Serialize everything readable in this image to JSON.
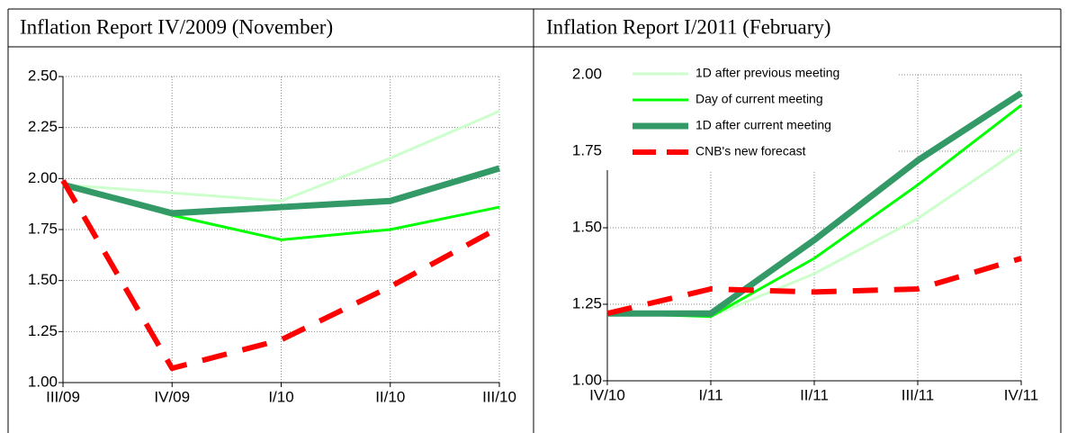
{
  "chart_data": [
    {
      "type": "line",
      "title": "Inflation Report IV/2009 (November)",
      "categories": [
        "III/09",
        "IV/09",
        "I/10",
        "II/10",
        "III/10"
      ],
      "ylim": [
        1.0,
        2.5
      ],
      "yticks": [
        {
          "value": 1.0,
          "label": "1.00"
        },
        1.25,
        {
          "value": 1.5,
          "label": "1.50"
        },
        1.75,
        {
          "value": 2.0,
          "label": "2.00"
        },
        2.25,
        {
          "value": 2.5,
          "label": "2.50"
        }
      ],
      "grid": true,
      "series": [
        {
          "color": "#ccffcc",
          "line_style": "solid",
          "values": [
            1.97,
            1.93,
            1.89,
            2.1,
            2.33
          ]
        },
        {
          "color": "#00ff00",
          "line_style": "solid",
          "values": [
            1.97,
            1.82,
            1.7,
            1.75,
            1.86
          ]
        },
        {
          "color": "#339966",
          "line_style": "thick",
          "values": [
            1.97,
            1.83,
            1.86,
            1.89,
            2.05
          ]
        },
        {
          "color": "#ff0000",
          "line_style": "dashed",
          "values": [
            1.99,
            1.07,
            1.21,
            1.47,
            1.76
          ]
        }
      ]
    },
    {
      "type": "line",
      "title": "Inflation Report I/2011 (February)",
      "categories": [
        "IV/10",
        "I/11",
        "II/11",
        "III/11",
        "IV/11"
      ],
      "ylim": [
        1.0,
        2.0
      ],
      "yticks": [
        {
          "value": 1.0,
          "label": "1.00"
        },
        1.25,
        {
          "value": 1.5,
          "label": "1.50"
        },
        1.75,
        {
          "value": 2.0,
          "label": "2.00"
        }
      ],
      "grid": true,
      "legend": "upper left",
      "series": [
        {
          "name": "1D after previous meeting",
          "color": "#ccffcc",
          "line_style": "solid",
          "values": [
            1.22,
            1.21,
            1.35,
            1.53,
            1.76
          ]
        },
        {
          "name": "Day of current meeting",
          "color": "#00ff00",
          "line_style": "solid",
          "values": [
            1.22,
            1.21,
            1.4,
            1.64,
            1.9
          ]
        },
        {
          "name": "1D after current meeting",
          "color": "#339966",
          "line_style": "thick",
          "values": [
            1.22,
            1.22,
            1.46,
            1.72,
            1.94
          ]
        },
        {
          "name": "CNB's new forecast",
          "color": "#ff0000",
          "line_style": "dashed",
          "values": [
            1.22,
            1.3,
            1.29,
            1.3,
            1.4
          ]
        }
      ]
    }
  ]
}
